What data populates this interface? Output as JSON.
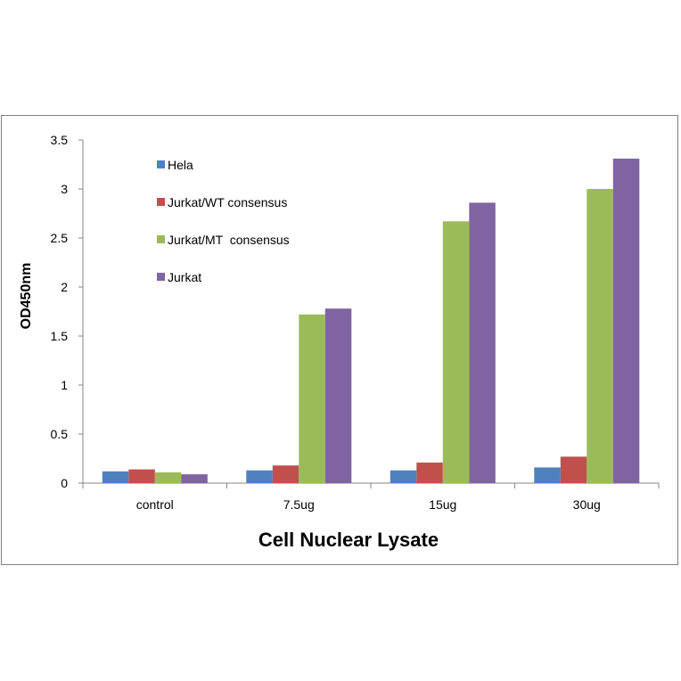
{
  "chart_data": {
    "type": "bar",
    "title": "",
    "xlabel": "Cell Nuclear Lysate",
    "ylabel": "OD450nm",
    "categories": [
      "control",
      "7.5ug",
      "15ug",
      "30ug"
    ],
    "ylim": [
      0,
      3.5
    ],
    "yticks": [
      "0",
      "0.5",
      "1",
      "1.5",
      "2",
      "2.5",
      "3",
      "3.5"
    ],
    "ytick_values": [
      0,
      0.5,
      1,
      1.5,
      2,
      2.5,
      3,
      3.5
    ],
    "grid": false,
    "legend_position": "top-left",
    "series": [
      {
        "name": "Hela",
        "color": "#4f81bd",
        "values": [
          0.12,
          0.13,
          0.13,
          0.16
        ]
      },
      {
        "name": "Jurkat/WT consensus",
        "color": "#c0504d",
        "values": [
          0.14,
          0.18,
          0.21,
          0.27
        ]
      },
      {
        "name": "Jurkat/MT  consensus",
        "color": "#9bbb59",
        "values": [
          0.11,
          1.72,
          2.67,
          3.0
        ]
      },
      {
        "name": "Jurkat",
        "color": "#8064a2",
        "values": [
          0.09,
          1.78,
          2.86,
          3.31
        ]
      }
    ]
  }
}
